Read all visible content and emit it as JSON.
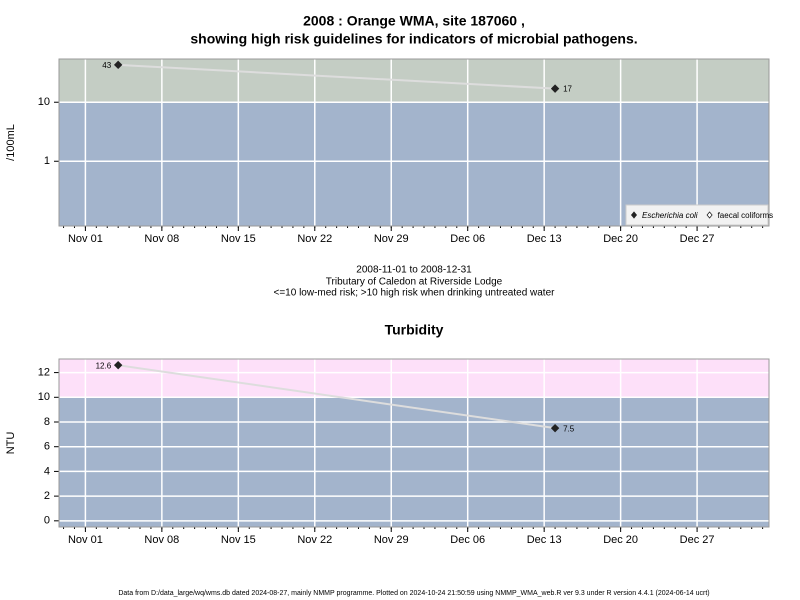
{
  "title": [
    "2008 : Orange WMA, site 187060 ,",
    "showing high risk guidelines for indicators of microbial pathogens."
  ],
  "subtitle": [
    "2008-11-01 to 2008-12-31",
    "Tributary of Caledon at Riverside Lodge",
    "<=10 low-med risk; >10 high risk when drinking untreated water"
  ],
  "footer": "Data from D:/data_large/wq/wms.db dated 2024-08-27, mainly NMMP programme. Plotted on 2024-10-24 21:50:59 using NMMP_WMA_web.R ver 9.3 under R version 4.4.1 (2024-06-14 ucrt)",
  "chart_data": [
    {
      "type": "line",
      "ylabel": "/100mL",
      "log_y": true,
      "x": [
        "2008-11-04",
        "2008-12-14"
      ],
      "series": [
        {
          "name": "Escherichia coli",
          "color": "#222222",
          "values": [
            43,
            17
          ]
        },
        {
          "name": "faecal coliforms",
          "color": "#ffffff",
          "values": [
            null,
            null
          ]
        }
      ],
      "line_color": "#dddddd",
      "threshold": {
        "value": 10,
        "above_color": "#c4cdc4",
        "below_color": "#a3b4cc"
      },
      "xlim": [
        "2008-10-29T14:00",
        "2009-01-02T14:00"
      ],
      "xticks": [
        {
          "value": "2008-11-01",
          "label": "Nov 01"
        },
        {
          "value": "2008-11-08",
          "label": "Nov 08"
        },
        {
          "value": "2008-11-15",
          "label": "Nov 15"
        },
        {
          "value": "2008-11-22",
          "label": "Nov 22"
        },
        {
          "value": "2008-11-29",
          "label": "Nov 29"
        },
        {
          "value": "2008-12-06",
          "label": "Dec 06"
        },
        {
          "value": "2008-12-13",
          "label": "Dec 13"
        },
        {
          "value": "2008-12-20",
          "label": "Dec 20"
        },
        {
          "value": "2008-12-27",
          "label": "Dec 27"
        }
      ],
      "ylim": [
        0.08,
        54
      ],
      "yticks": [
        1,
        10
      ],
      "grid": true,
      "legend": "bottom-right"
    },
    {
      "type": "line",
      "title": "Turbidity",
      "ylabel": "NTU",
      "log_y": false,
      "x": [
        "2008-11-04",
        "2008-12-14"
      ],
      "series": [
        {
          "name": "Turbidity",
          "color": "#222222",
          "values": [
            12.6,
            7.5
          ]
        }
      ],
      "line_color": "#dddddd",
      "threshold": {
        "value": 10,
        "above_color": "#fde0f9",
        "below_color": "#a3b4cc"
      },
      "xlim": [
        "2008-10-29T14:00",
        "2009-01-02T14:00"
      ],
      "xticks": [
        {
          "value": "2008-11-01",
          "label": "Nov 01"
        },
        {
          "value": "2008-11-08",
          "label": "Nov 08"
        },
        {
          "value": "2008-11-15",
          "label": "Nov 15"
        },
        {
          "value": "2008-11-22",
          "label": "Nov 22"
        },
        {
          "value": "2008-11-29",
          "label": "Nov 29"
        },
        {
          "value": "2008-12-06",
          "label": "Dec 06"
        },
        {
          "value": "2008-12-13",
          "label": "Dec 13"
        },
        {
          "value": "2008-12-20",
          "label": "Dec 20"
        },
        {
          "value": "2008-12-27",
          "label": "Dec 27"
        }
      ],
      "ylim": [
        -0.5,
        13.1
      ],
      "yticks": [
        0,
        2,
        4,
        6,
        8,
        10,
        12
      ],
      "grid": true
    }
  ]
}
